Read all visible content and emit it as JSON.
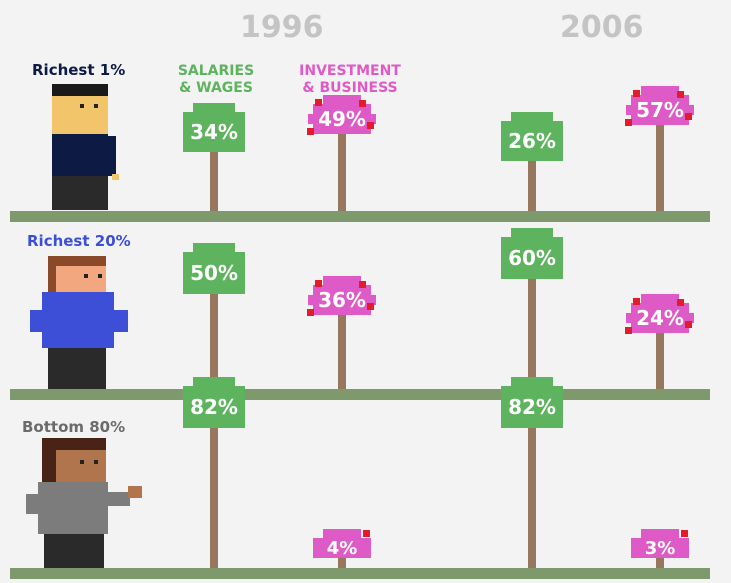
{
  "years": [
    "1996",
    "2006"
  ],
  "headers": {
    "salaries": [
      "SALARIES",
      "& WAGES"
    ],
    "investment": [
      "INVESTMENT",
      "& BUSINESS"
    ]
  },
  "colors": {
    "salaries": "#5db35e",
    "investment": "#de5ac6",
    "fruit": "#e21c2b",
    "trunk": "#97775e",
    "ground": "#7e9a6c",
    "richest1": "#0c1a44",
    "richest20": "#3d4fd6",
    "bottom80": "#6b6b6b"
  },
  "rows": [
    {
      "label": "Richest 1%"
    },
    {
      "label": "Richest 20%"
    },
    {
      "label": "Bottom 80%"
    }
  ],
  "chart_data": {
    "type": "bar",
    "title": "",
    "categories": [
      "Richest 1%",
      "Richest 20%",
      "Bottom 80%"
    ],
    "series": [
      {
        "name": "SALARIES & WAGES 1996",
        "values": [
          34,
          50,
          82
        ]
      },
      {
        "name": "INVESTMENT & BUSINESS 1996",
        "values": [
          49,
          36,
          4
        ]
      },
      {
        "name": "SALARIES & WAGES 2006",
        "values": [
          26,
          60,
          82
        ]
      },
      {
        "name": "INVESTMENT & BUSINESS 2006",
        "values": [
          57,
          24,
          3
        ]
      }
    ],
    "value_labels": [
      [
        "34%",
        "49%",
        "26%",
        "57%"
      ],
      [
        "50%",
        "36%",
        "60%",
        "24%"
      ],
      [
        "82%",
        "4%",
        "82%",
        "3%"
      ]
    ],
    "unit": "%"
  }
}
